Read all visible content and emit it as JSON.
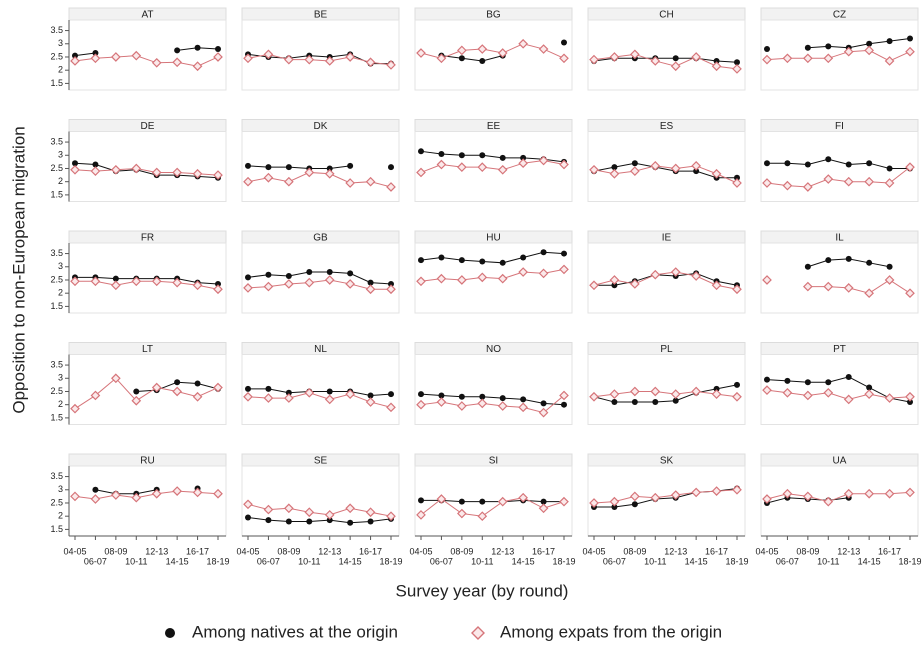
{
  "chart_data": {
    "type": "line",
    "y_label": "Opposition to non-European migration",
    "x_label": "Survey year (by round)",
    "categories": [
      "04-05",
      "06-07",
      "08-09",
      "10-11",
      "12-13",
      "14-15",
      "16-17",
      "18-19"
    ],
    "ylim": [
      1.25,
      3.9
    ],
    "yticks": [
      1.5,
      2,
      2.5,
      3,
      3.5
    ],
    "series": [
      {
        "name": "Among natives at the origin",
        "color": "#111111",
        "marker": "circle"
      },
      {
        "name": "Among expats from the origin",
        "color": "#d6757a",
        "marker": "diamond"
      }
    ],
    "panels": [
      {
        "title": "AT",
        "series": [
          {
            "values": [
              2.55,
              2.65,
              null,
              null,
              null,
              2.75,
              2.85,
              2.8
            ]
          },
          {
            "values": [
              2.35,
              2.45,
              2.5,
              2.55,
              2.28,
              2.3,
              2.15,
              2.5
            ]
          }
        ]
      },
      {
        "title": "BE",
        "series": [
          {
            "values": [
              2.6,
              2.5,
              2.45,
              2.55,
              2.5,
              2.6,
              2.25,
              2.25
            ]
          },
          {
            "values": [
              2.45,
              2.6,
              2.4,
              2.4,
              2.35,
              2.5,
              2.3,
              2.2
            ]
          }
        ]
      },
      {
        "title": "BG",
        "series": [
          {
            "values": [
              null,
              2.55,
              2.45,
              2.35,
              2.55,
              null,
              null,
              3.05
            ]
          },
          {
            "values": [
              2.65,
              2.45,
              2.75,
              2.8,
              2.65,
              3.0,
              2.8,
              2.45
            ]
          }
        ]
      },
      {
        "title": "CH",
        "series": [
          {
            "values": [
              2.35,
              2.45,
              2.45,
              2.45,
              2.45,
              2.45,
              2.35,
              2.3
            ]
          },
          {
            "values": [
              2.4,
              2.5,
              2.6,
              2.35,
              2.15,
              2.5,
              2.15,
              2.05
            ]
          }
        ]
      },
      {
        "title": "CZ",
        "series": [
          {
            "values": [
              2.8,
              null,
              2.85,
              2.9,
              2.85,
              3.0,
              3.1,
              3.2
            ]
          },
          {
            "values": [
              2.4,
              2.45,
              2.45,
              2.45,
              2.7,
              2.75,
              2.35,
              2.7
            ]
          }
        ]
      },
      {
        "title": "DE",
        "series": [
          {
            "values": [
              2.7,
              2.65,
              2.4,
              2.45,
              2.25,
              2.25,
              2.2,
              2.15
            ]
          },
          {
            "values": [
              2.45,
              2.4,
              2.45,
              2.5,
              2.35,
              2.35,
              2.3,
              2.25
            ]
          }
        ]
      },
      {
        "title": "DK",
        "series": [
          {
            "values": [
              2.6,
              2.55,
              2.55,
              2.5,
              2.5,
              2.6,
              null,
              2.55
            ]
          },
          {
            "values": [
              2.0,
              2.15,
              2.0,
              2.35,
              2.3,
              1.95,
              2.0,
              1.8
            ]
          }
        ]
      },
      {
        "title": "EE",
        "series": [
          {
            "values": [
              3.15,
              3.05,
              3.0,
              3.0,
              2.9,
              2.9,
              2.85,
              2.75
            ]
          },
          {
            "values": [
              2.35,
              2.65,
              2.55,
              2.55,
              2.45,
              2.7,
              2.8,
              2.65
            ]
          }
        ]
      },
      {
        "title": "ES",
        "series": [
          {
            "values": [
              2.4,
              2.55,
              2.7,
              2.55,
              2.4,
              2.4,
              2.15,
              2.15
            ]
          },
          {
            "values": [
              2.45,
              2.3,
              2.4,
              2.6,
              2.5,
              2.6,
              2.3,
              1.95
            ]
          }
        ]
      },
      {
        "title": "FI",
        "series": [
          {
            "values": [
              2.7,
              2.7,
              2.65,
              2.85,
              2.65,
              2.7,
              2.5,
              2.5
            ]
          },
          {
            "values": [
              1.95,
              1.85,
              1.8,
              2.1,
              2.0,
              2.0,
              1.95,
              2.55
            ]
          }
        ]
      },
      {
        "title": "FR",
        "series": [
          {
            "values": [
              2.6,
              2.6,
              2.55,
              2.55,
              2.55,
              2.55,
              2.4,
              2.35
            ]
          },
          {
            "values": [
              2.45,
              2.45,
              2.3,
              2.45,
              2.45,
              2.4,
              2.3,
              2.15
            ]
          }
        ]
      },
      {
        "title": "GB",
        "series": [
          {
            "values": [
              2.6,
              2.7,
              2.65,
              2.8,
              2.8,
              2.75,
              2.4,
              2.35
            ]
          },
          {
            "values": [
              2.2,
              2.25,
              2.35,
              2.4,
              2.5,
              2.35,
              2.15,
              2.15
            ]
          }
        ]
      },
      {
        "title": "HU",
        "series": [
          {
            "values": [
              3.25,
              3.35,
              3.25,
              3.2,
              3.15,
              3.35,
              3.55,
              3.5
            ]
          },
          {
            "values": [
              2.45,
              2.55,
              2.5,
              2.6,
              2.55,
              2.8,
              2.75,
              2.9
            ]
          }
        ]
      },
      {
        "title": "IE",
        "series": [
          {
            "values": [
              2.3,
              2.3,
              2.45,
              2.7,
              2.65,
              2.75,
              2.45,
              2.3
            ]
          },
          {
            "values": [
              2.3,
              2.5,
              2.35,
              2.7,
              2.8,
              2.65,
              2.3,
              2.15
            ]
          }
        ]
      },
      {
        "title": "IL",
        "series": [
          {
            "values": [
              null,
              null,
              3.0,
              3.25,
              3.3,
              3.15,
              3.0,
              null
            ]
          },
          {
            "values": [
              2.5,
              null,
              2.25,
              2.25,
              2.2,
              2.0,
              2.5,
              2.0
            ]
          }
        ]
      },
      {
        "title": "LT",
        "series": [
          {
            "values": [
              null,
              null,
              null,
              2.5,
              2.55,
              2.85,
              2.8,
              2.6
            ]
          },
          {
            "values": [
              1.85,
              2.35,
              3.0,
              2.15,
              2.65,
              2.5,
              2.3,
              2.65
            ]
          }
        ]
      },
      {
        "title": "NL",
        "series": [
          {
            "values": [
              2.6,
              2.6,
              2.45,
              2.5,
              2.5,
              2.5,
              2.35,
              2.4
            ]
          },
          {
            "values": [
              2.3,
              2.25,
              2.25,
              2.45,
              2.2,
              2.4,
              2.1,
              1.9
            ]
          }
        ]
      },
      {
        "title": "NO",
        "series": [
          {
            "values": [
              2.4,
              2.35,
              2.3,
              2.3,
              2.25,
              2.2,
              2.05,
              2.0
            ]
          },
          {
            "values": [
              2.0,
              2.1,
              1.95,
              2.05,
              1.95,
              1.9,
              1.7,
              2.35
            ]
          }
        ]
      },
      {
        "title": "PL",
        "series": [
          {
            "values": [
              2.3,
              2.1,
              2.1,
              2.1,
              2.15,
              2.45,
              2.6,
              2.75
            ]
          },
          {
            "values": [
              2.3,
              2.4,
              2.5,
              2.5,
              2.4,
              2.5,
              2.4,
              2.3
            ]
          }
        ]
      },
      {
        "title": "PT",
        "series": [
          {
            "values": [
              2.95,
              2.9,
              2.85,
              2.85,
              3.05,
              2.65,
              2.25,
              2.1
            ]
          },
          {
            "values": [
              2.55,
              2.45,
              2.35,
              2.45,
              2.2,
              2.4,
              2.25,
              2.3
            ]
          }
        ]
      },
      {
        "title": "RU",
        "series": [
          {
            "values": [
              null,
              3.0,
              2.85,
              2.85,
              3.0,
              null,
              3.05,
              null
            ]
          },
          {
            "values": [
              2.75,
              2.65,
              2.8,
              2.7,
              2.85,
              2.95,
              2.9,
              2.85
            ]
          }
        ]
      },
      {
        "title": "SE",
        "series": [
          {
            "values": [
              1.95,
              1.85,
              1.8,
              1.8,
              1.85,
              1.75,
              1.8,
              1.9
            ]
          },
          {
            "values": [
              2.45,
              2.25,
              2.3,
              2.15,
              2.05,
              2.3,
              2.15,
              2.0
            ]
          }
        ]
      },
      {
        "title": "SI",
        "series": [
          {
            "values": [
              2.6,
              2.6,
              2.55,
              2.55,
              2.55,
              2.6,
              2.55,
              2.55
            ]
          },
          {
            "values": [
              2.05,
              2.65,
              2.1,
              2.0,
              2.55,
              2.7,
              2.3,
              2.55
            ]
          }
        ]
      },
      {
        "title": "SK",
        "series": [
          {
            "values": [
              2.35,
              2.35,
              2.45,
              2.65,
              2.7,
              2.9,
              2.95,
              3.05
            ]
          },
          {
            "values": [
              2.5,
              2.55,
              2.75,
              2.7,
              2.8,
              2.9,
              2.95,
              3.0
            ]
          }
        ]
      },
      {
        "title": "UA",
        "series": [
          {
            "values": [
              2.5,
              2.7,
              2.65,
              2.6,
              2.7,
              null,
              null,
              null
            ]
          },
          {
            "values": [
              2.65,
              2.85,
              2.75,
              2.55,
              2.85,
              2.85,
              2.85,
              2.9
            ]
          }
        ]
      }
    ]
  }
}
